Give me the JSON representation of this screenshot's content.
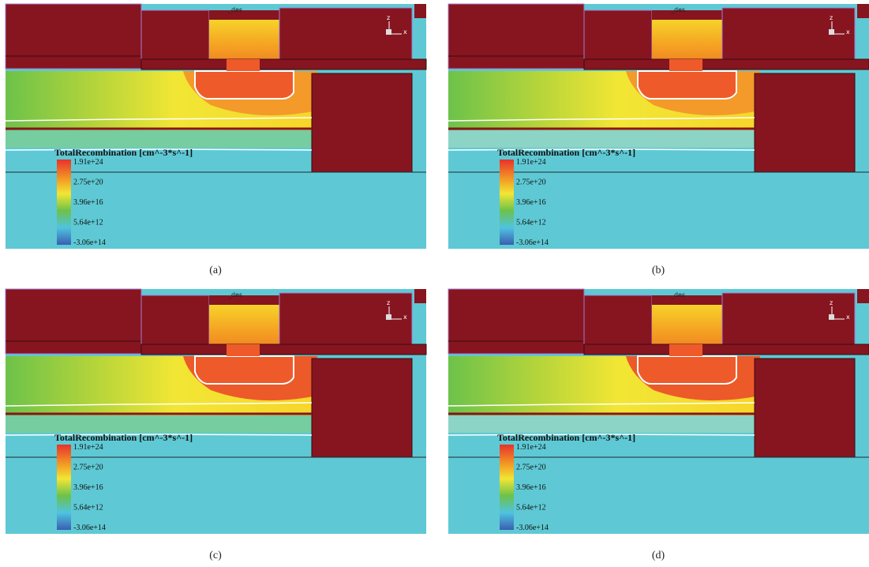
{
  "panels": [
    {
      "caption": "(a)",
      "file_label": "_des",
      "axis_z": "z",
      "axis_x": "x",
      "legend_title": "TotalRecombination [cm^-3*s^-1]",
      "legend_labels": [
        "1.91e+24",
        "2.75e+20",
        "3.96e+16",
        "5.64e+12",
        "-3.06e+14"
      ]
    },
    {
      "caption": "(b)",
      "file_label": "_des",
      "axis_z": "z",
      "axis_x": "x",
      "legend_title": "TotalRecombination [cm^-3*s^-1]",
      "legend_labels": [
        "1.91e+24",
        "2.75e+20",
        "3.96e+16",
        "5.64e+12",
        "-3.06e+14"
      ]
    },
    {
      "caption": "(c)",
      "file_label": "_des",
      "axis_z": "z",
      "axis_x": "x",
      "legend_title": "TotalRecombination [cm^-3*s^-1]",
      "legend_labels": [
        "1.91e+24",
        "2.75e+20",
        "3.96e+16",
        "5.64e+12",
        "-3.06e+14"
      ]
    },
    {
      "caption": "(d)",
      "file_label": "_des",
      "axis_z": "z",
      "axis_x": "x",
      "legend_title": "TotalRecombination [cm^-3*s^-1]",
      "legend_labels": [
        "1.91e+24",
        "2.75e+20",
        "3.96e+16",
        "5.64e+12",
        "-3.06e+14"
      ]
    }
  ]
}
